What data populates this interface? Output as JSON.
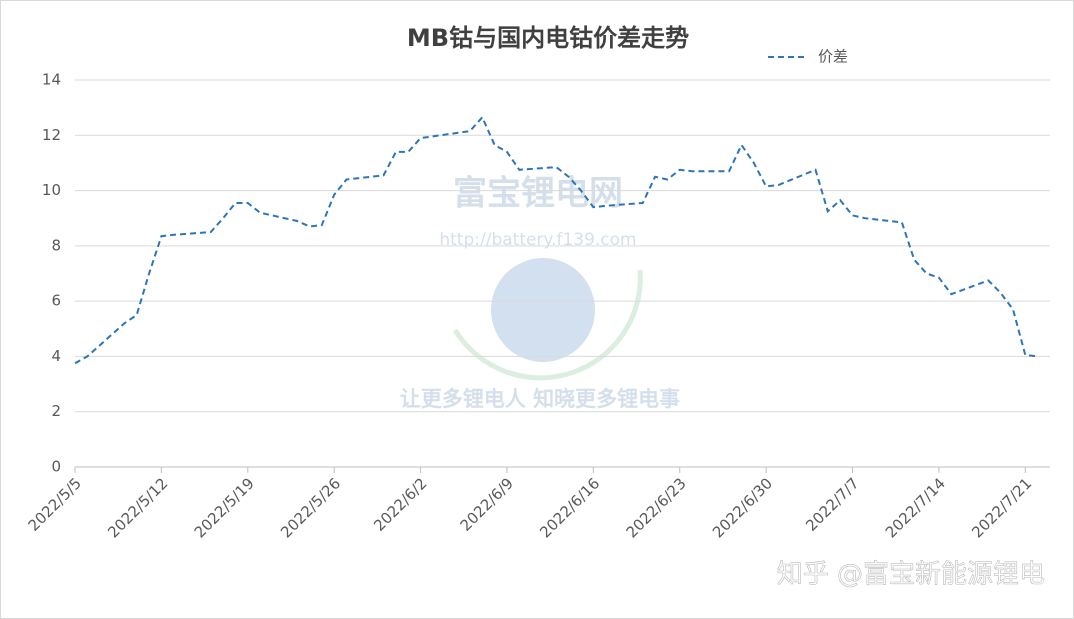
{
  "chart_data": {
    "type": "line",
    "title": "MB钴与国内电钴价差走势",
    "x": [
      "2022/5/5",
      "2022/5/6",
      "2022/5/9",
      "2022/5/10",
      "2022/5/11",
      "2022/5/12",
      "2022/5/13",
      "2022/5/16",
      "2022/5/17",
      "2022/5/18",
      "2022/5/19",
      "2022/5/20",
      "2022/5/23",
      "2022/5/24",
      "2022/5/25",
      "2022/5/26",
      "2022/5/27",
      "2022/5/30",
      "2022/5/31",
      "2022/6/1",
      "2022/6/2",
      "2022/6/6",
      "2022/6/7",
      "2022/6/8",
      "2022/6/9",
      "2022/6/10",
      "2022/6/13",
      "2022/6/14",
      "2022/6/15",
      "2022/6/16",
      "2022/6/17",
      "2022/6/20",
      "2022/6/21",
      "2022/6/22",
      "2022/6/23",
      "2022/6/24",
      "2022/6/27",
      "2022/6/28",
      "2022/6/29",
      "2022/6/30",
      "2022/7/1",
      "2022/7/4",
      "2022/7/5",
      "2022/7/6",
      "2022/7/7",
      "2022/7/8",
      "2022/7/11",
      "2022/7/12",
      "2022/7/13",
      "2022/7/14",
      "2022/7/15",
      "2022/7/18",
      "2022/7/19",
      "2022/7/20",
      "2022/7/21",
      "2022/7/22"
    ],
    "series": [
      {
        "name": "价差",
        "color": "#2e75b6",
        "values": [
          3.75,
          4.0,
          5.2,
          5.5,
          7.0,
          8.35,
          8.4,
          8.5,
          9.0,
          9.55,
          9.55,
          9.2,
          8.9,
          8.7,
          8.75,
          9.85,
          10.4,
          10.55,
          11.4,
          11.4,
          11.9,
          12.15,
          12.65,
          11.65,
          11.4,
          10.75,
          10.85,
          10.5,
          10.0,
          9.4,
          9.45,
          9.55,
          10.5,
          10.4,
          10.75,
          10.7,
          10.7,
          11.65,
          11.0,
          10.15,
          10.2,
          10.75,
          9.25,
          9.65,
          9.1,
          9.0,
          8.85,
          7.5,
          7.0,
          6.85,
          6.25,
          6.75,
          6.3,
          5.7,
          4.05,
          4.0
        ]
      }
    ],
    "xlim": [
      "2022/5/5",
      "2022/7/23"
    ],
    "xticks": [
      "2022/5/5",
      "2022/5/12",
      "2022/5/19",
      "2022/5/26",
      "2022/6/2",
      "2022/6/9",
      "2022/6/16",
      "2022/6/23",
      "2022/6/30",
      "2022/7/7",
      "2022/7/14",
      "2022/7/21"
    ],
    "ylim": [
      0,
      14
    ],
    "yticks": [
      0,
      2,
      4,
      6,
      8,
      10,
      12,
      14
    ],
    "grid": true,
    "legend": "top-right"
  },
  "watermark": {
    "site": "富宝锂电网",
    "url": "http://battery.f139.com",
    "slogan": "让更多锂电人 知晓更多锂电事",
    "credit": "知乎 @富宝新能源锂电"
  }
}
